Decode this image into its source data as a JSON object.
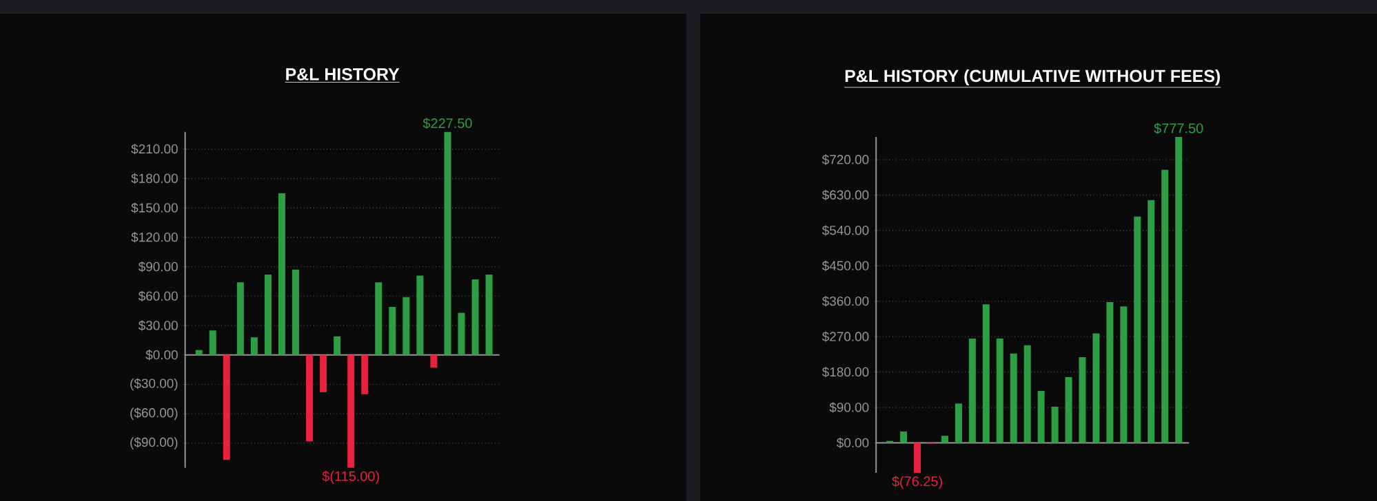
{
  "chart_data": [
    {
      "type": "bar",
      "title": "P&L HISTORY",
      "categories": [
        null,
        null,
        null,
        null,
        null,
        null,
        null,
        null,
        null,
        null,
        null,
        null,
        null,
        null,
        null,
        null,
        null,
        null,
        null,
        null,
        null,
        null
      ],
      "values": [
        5,
        25,
        -107,
        74,
        18,
        82,
        165,
        87,
        -88,
        -38,
        19,
        -115,
        -40,
        74,
        49,
        59,
        81,
        -13,
        227.5,
        43,
        77,
        82
      ],
      "colors": [
        "#2e9e45",
        "#2e9e45",
        "#e8213f",
        "#2e9e45",
        "#2e9e45",
        "#2e9e45",
        "#2e9e45",
        "#2e9e45",
        "#e8213f",
        "#e8213f",
        "#2e9e45",
        "#e8213f",
        "#e8213f",
        "#2e9e45",
        "#2e9e45",
        "#2e9e45",
        "#2e9e45",
        "#e8213f",
        "#2e9e45",
        "#2e9e45",
        "#2e9e45",
        "#2e9e45"
      ],
      "value_labels": [
        null,
        null,
        null,
        null,
        null,
        null,
        null,
        null,
        null,
        null,
        null,
        "$(115.00)",
        null,
        null,
        null,
        null,
        null,
        null,
        "$227.50",
        null,
        null,
        null
      ],
      "ylim": [
        -115,
        227.5
      ],
      "yticks": [
        {
          "value": -90,
          "label": "($90.00)"
        },
        {
          "value": -60,
          "label": "($60.00)"
        },
        {
          "value": -30,
          "label": "($30.00)"
        },
        {
          "value": 0,
          "label": "$0.00"
        },
        {
          "value": 30,
          "label": "$30.00"
        },
        {
          "value": 60,
          "label": "$60.00"
        },
        {
          "value": 90,
          "label": "$90.00"
        },
        {
          "value": 120,
          "label": "$120.00"
        },
        {
          "value": 150,
          "label": "$150.00"
        },
        {
          "value": 180,
          "label": "$180.00"
        },
        {
          "value": 210,
          "label": "$210.00"
        }
      ],
      "grid": "y"
    },
    {
      "type": "bar",
      "title": "P&L HISTORY (CUMULATIVE WITHOUT FEES)",
      "categories": [
        null,
        null,
        null,
        null,
        null,
        null,
        null,
        null,
        null,
        null,
        null,
        null,
        null,
        null,
        null,
        null,
        null,
        null,
        null,
        null,
        null,
        null
      ],
      "values": [
        5,
        29,
        -76.25,
        -2,
        18,
        100,
        265,
        352,
        265,
        227,
        248,
        132,
        92,
        167,
        218,
        278,
        358,
        347,
        575,
        617,
        694,
        777.5
      ],
      "colors": [
        "#2e9e45",
        "#2e9e45",
        "#e8213f",
        "#e8213f",
        "#2e9e45",
        "#2e9e45",
        "#2e9e45",
        "#2e9e45",
        "#2e9e45",
        "#2e9e45",
        "#2e9e45",
        "#2e9e45",
        "#2e9e45",
        "#2e9e45",
        "#2e9e45",
        "#2e9e45",
        "#2e9e45",
        "#2e9e45",
        "#2e9e45",
        "#2e9e45",
        "#2e9e45",
        "#2e9e45"
      ],
      "value_labels": [
        null,
        null,
        "$(76.25)",
        null,
        null,
        null,
        null,
        null,
        null,
        null,
        null,
        null,
        null,
        null,
        null,
        null,
        null,
        null,
        null,
        null,
        null,
        "$777.50"
      ],
      "ylim": [
        -76.25,
        777.5
      ],
      "yticks": [
        {
          "value": 0,
          "label": "$0.00"
        },
        {
          "value": 90,
          "label": "$90.00"
        },
        {
          "value": 180,
          "label": "$180.00"
        },
        {
          "value": 270,
          "label": "$270.00"
        },
        {
          "value": 360,
          "label": "$360.00"
        },
        {
          "value": 450,
          "label": "$450.00"
        },
        {
          "value": 540,
          "label": "$540.00"
        },
        {
          "value": 630,
          "label": "$630.00"
        },
        {
          "value": 720,
          "label": "$720.00"
        }
      ],
      "grid": "y"
    }
  ]
}
